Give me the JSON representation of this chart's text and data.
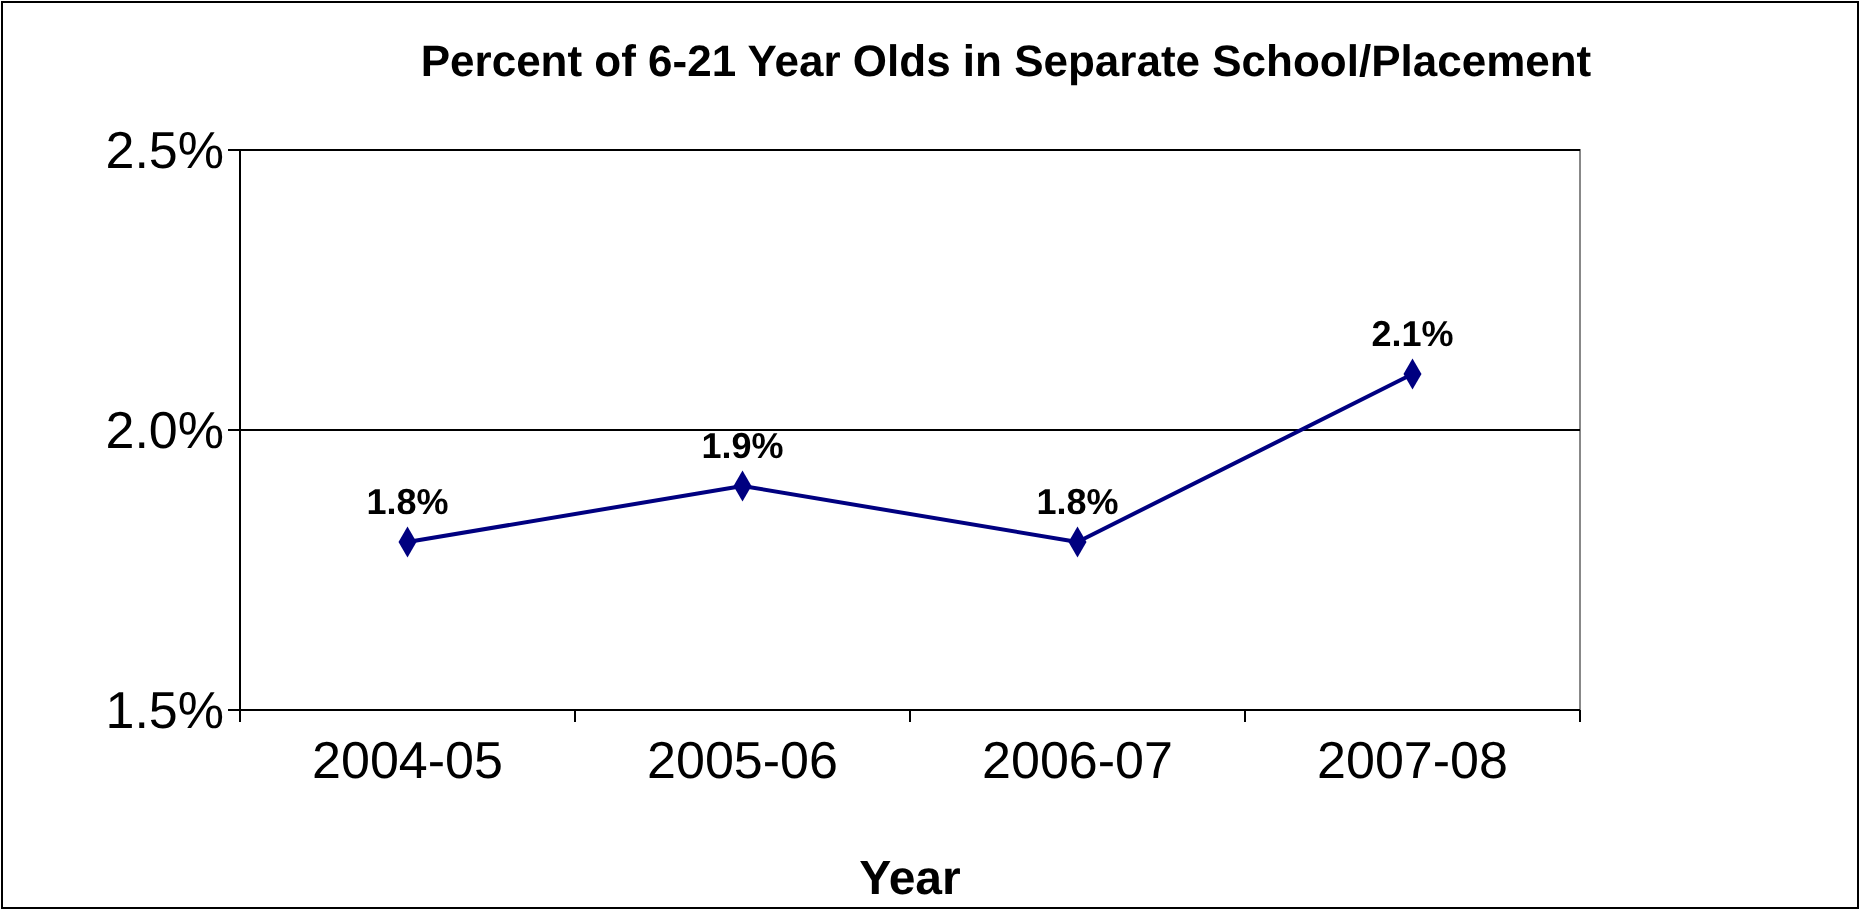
{
  "chart_data": {
    "type": "line",
    "title": "Percent of 6-21 Year Olds in Separate School/Placement",
    "xlabel": "Year",
    "categories": [
      "2004-05",
      "2005-06",
      "2006-07",
      "2007-08"
    ],
    "series": [
      {
        "color": "#000080",
        "values": [
          1.8,
          1.9,
          1.8,
          2.1
        ],
        "value_labels": [
          "1.8%",
          "1.9%",
          "1.8%",
          "2.1%"
        ]
      }
    ],
    "ylim": [
      1.5,
      2.5
    ],
    "yticks": [
      {
        "value": 1.5,
        "label": "1.5%"
      },
      {
        "value": 2.0,
        "label": "2.0%"
      },
      {
        "value": 2.5,
        "label": "2.5%"
      }
    ],
    "grid": "y",
    "marker": "diamond",
    "line_style": "solid"
  }
}
